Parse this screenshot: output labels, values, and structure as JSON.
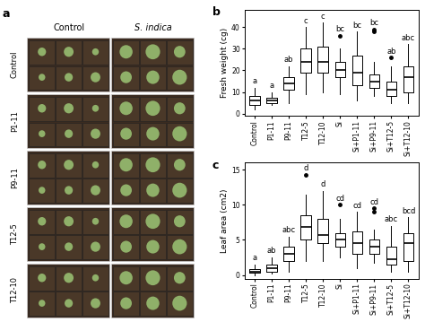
{
  "photo_panel": {
    "panel_label": "a",
    "column_labels": [
      "Control",
      "S. indica"
    ],
    "row_labels": [
      "Control",
      "P1-11",
      "P9-11",
      "T12-5",
      "T12-10"
    ]
  },
  "chart_data": [
    {
      "type": "box",
      "panel_label": "b",
      "y_label": "Fresh weight (cg)",
      "categories": [
        "Control",
        "P1-11",
        "P9-11",
        "T12-5",
        "T12-10",
        "Si",
        "Si+P1-11",
        "Si+P9-11",
        "Si+T12-5",
        "Si+T12-10"
      ],
      "boxes": [
        {
          "whislo": 2,
          "q1": 4,
          "med": 6,
          "q3": 8,
          "whishi": 12,
          "fliers": []
        },
        {
          "whislo": 4,
          "q1": 5,
          "med": 6,
          "q3": 7.5,
          "whishi": 10,
          "fliers": []
        },
        {
          "whislo": 5,
          "q1": 11,
          "med": 14,
          "q3": 17,
          "whishi": 22,
          "fliers": []
        },
        {
          "whislo": 9,
          "q1": 19,
          "med": 24,
          "q3": 30,
          "whishi": 40,
          "fliers": []
        },
        {
          "whislo": 10,
          "q1": 19,
          "med": 24,
          "q3": 31,
          "whishi": 42,
          "fliers": []
        },
        {
          "whislo": 9,
          "q1": 17,
          "med": 20,
          "q3": 24,
          "whishi": 30,
          "fliers": [
            36
          ]
        },
        {
          "whislo": 6,
          "q1": 13,
          "med": 19,
          "q3": 27,
          "whishi": 38,
          "fliers": []
        },
        {
          "whislo": 8,
          "q1": 12,
          "med": 15,
          "q3": 18,
          "whishi": 24,
          "fliers": [
            38,
            39
          ]
        },
        {
          "whislo": 5,
          "q1": 8,
          "med": 11,
          "q3": 15,
          "whishi": 22,
          "fliers": [
            26
          ]
        },
        {
          "whislo": 5,
          "q1": 10,
          "med": 17,
          "q3": 22,
          "whishi": 32,
          "fliers": []
        }
      ],
      "group_letters": [
        "a",
        "a",
        "ab",
        "c",
        "c",
        "bc",
        "bc",
        "bc",
        "ab",
        "abc"
      ],
      "ylim": [
        -1,
        48
      ],
      "yticks": [
        0,
        10,
        20,
        30,
        40
      ],
      "color": "#000000"
    },
    {
      "type": "box",
      "panel_label": "c",
      "y_label": "Leaf area (cm2)",
      "categories": [
        "Control",
        "P1-11",
        "P9-11",
        "T12-5",
        "T12-10",
        "Si",
        "Si+P1-11",
        "Si+P9-11",
        "Si+T12-5",
        "Si+T12-10"
      ],
      "boxes": [
        {
          "whislo": 0,
          "q1": 0.3,
          "med": 0.5,
          "q3": 0.8,
          "whishi": 1.5,
          "fliers": []
        },
        {
          "whislo": 0.2,
          "q1": 0.5,
          "med": 1,
          "q3": 1.5,
          "whishi": 2.5,
          "fliers": []
        },
        {
          "whislo": 0.5,
          "q1": 2,
          "med": 3,
          "q3": 4,
          "whishi": 5.5,
          "fliers": []
        },
        {
          "whislo": 2,
          "q1": 5,
          "med": 6.8,
          "q3": 8.5,
          "whishi": 11.5,
          "fliers": [
            14.3
          ]
        },
        {
          "whislo": 2,
          "q1": 4.5,
          "med": 5.7,
          "q3": 8,
          "whishi": 12,
          "fliers": []
        },
        {
          "whislo": 2.5,
          "q1": 4,
          "med": 5,
          "q3": 6,
          "whishi": 8,
          "fliers": [
            10
          ]
        },
        {
          "whislo": 1,
          "q1": 3,
          "med": 4.5,
          "q3": 6.2,
          "whishi": 9,
          "fliers": []
        },
        {
          "whislo": 1.8,
          "q1": 3,
          "med": 4,
          "q3": 5,
          "whishi": 6.5,
          "fliers": [
            9,
            9.5
          ]
        },
        {
          "whislo": 0.5,
          "q1": 1.5,
          "med": 2.2,
          "q3": 4,
          "whishi": 7,
          "fliers": []
        },
        {
          "whislo": 0.5,
          "q1": 2,
          "med": 4.5,
          "q3": 6,
          "whishi": 8.2,
          "fliers": []
        }
      ],
      "group_letters": [
        "a",
        "ab",
        "abc",
        "d",
        "d",
        "cd",
        "cd",
        "cd",
        "abc",
        "bcd"
      ],
      "ylim": [
        -0.5,
        16
      ],
      "yticks": [
        0,
        5,
        10,
        15
      ],
      "color": "#000000"
    }
  ]
}
